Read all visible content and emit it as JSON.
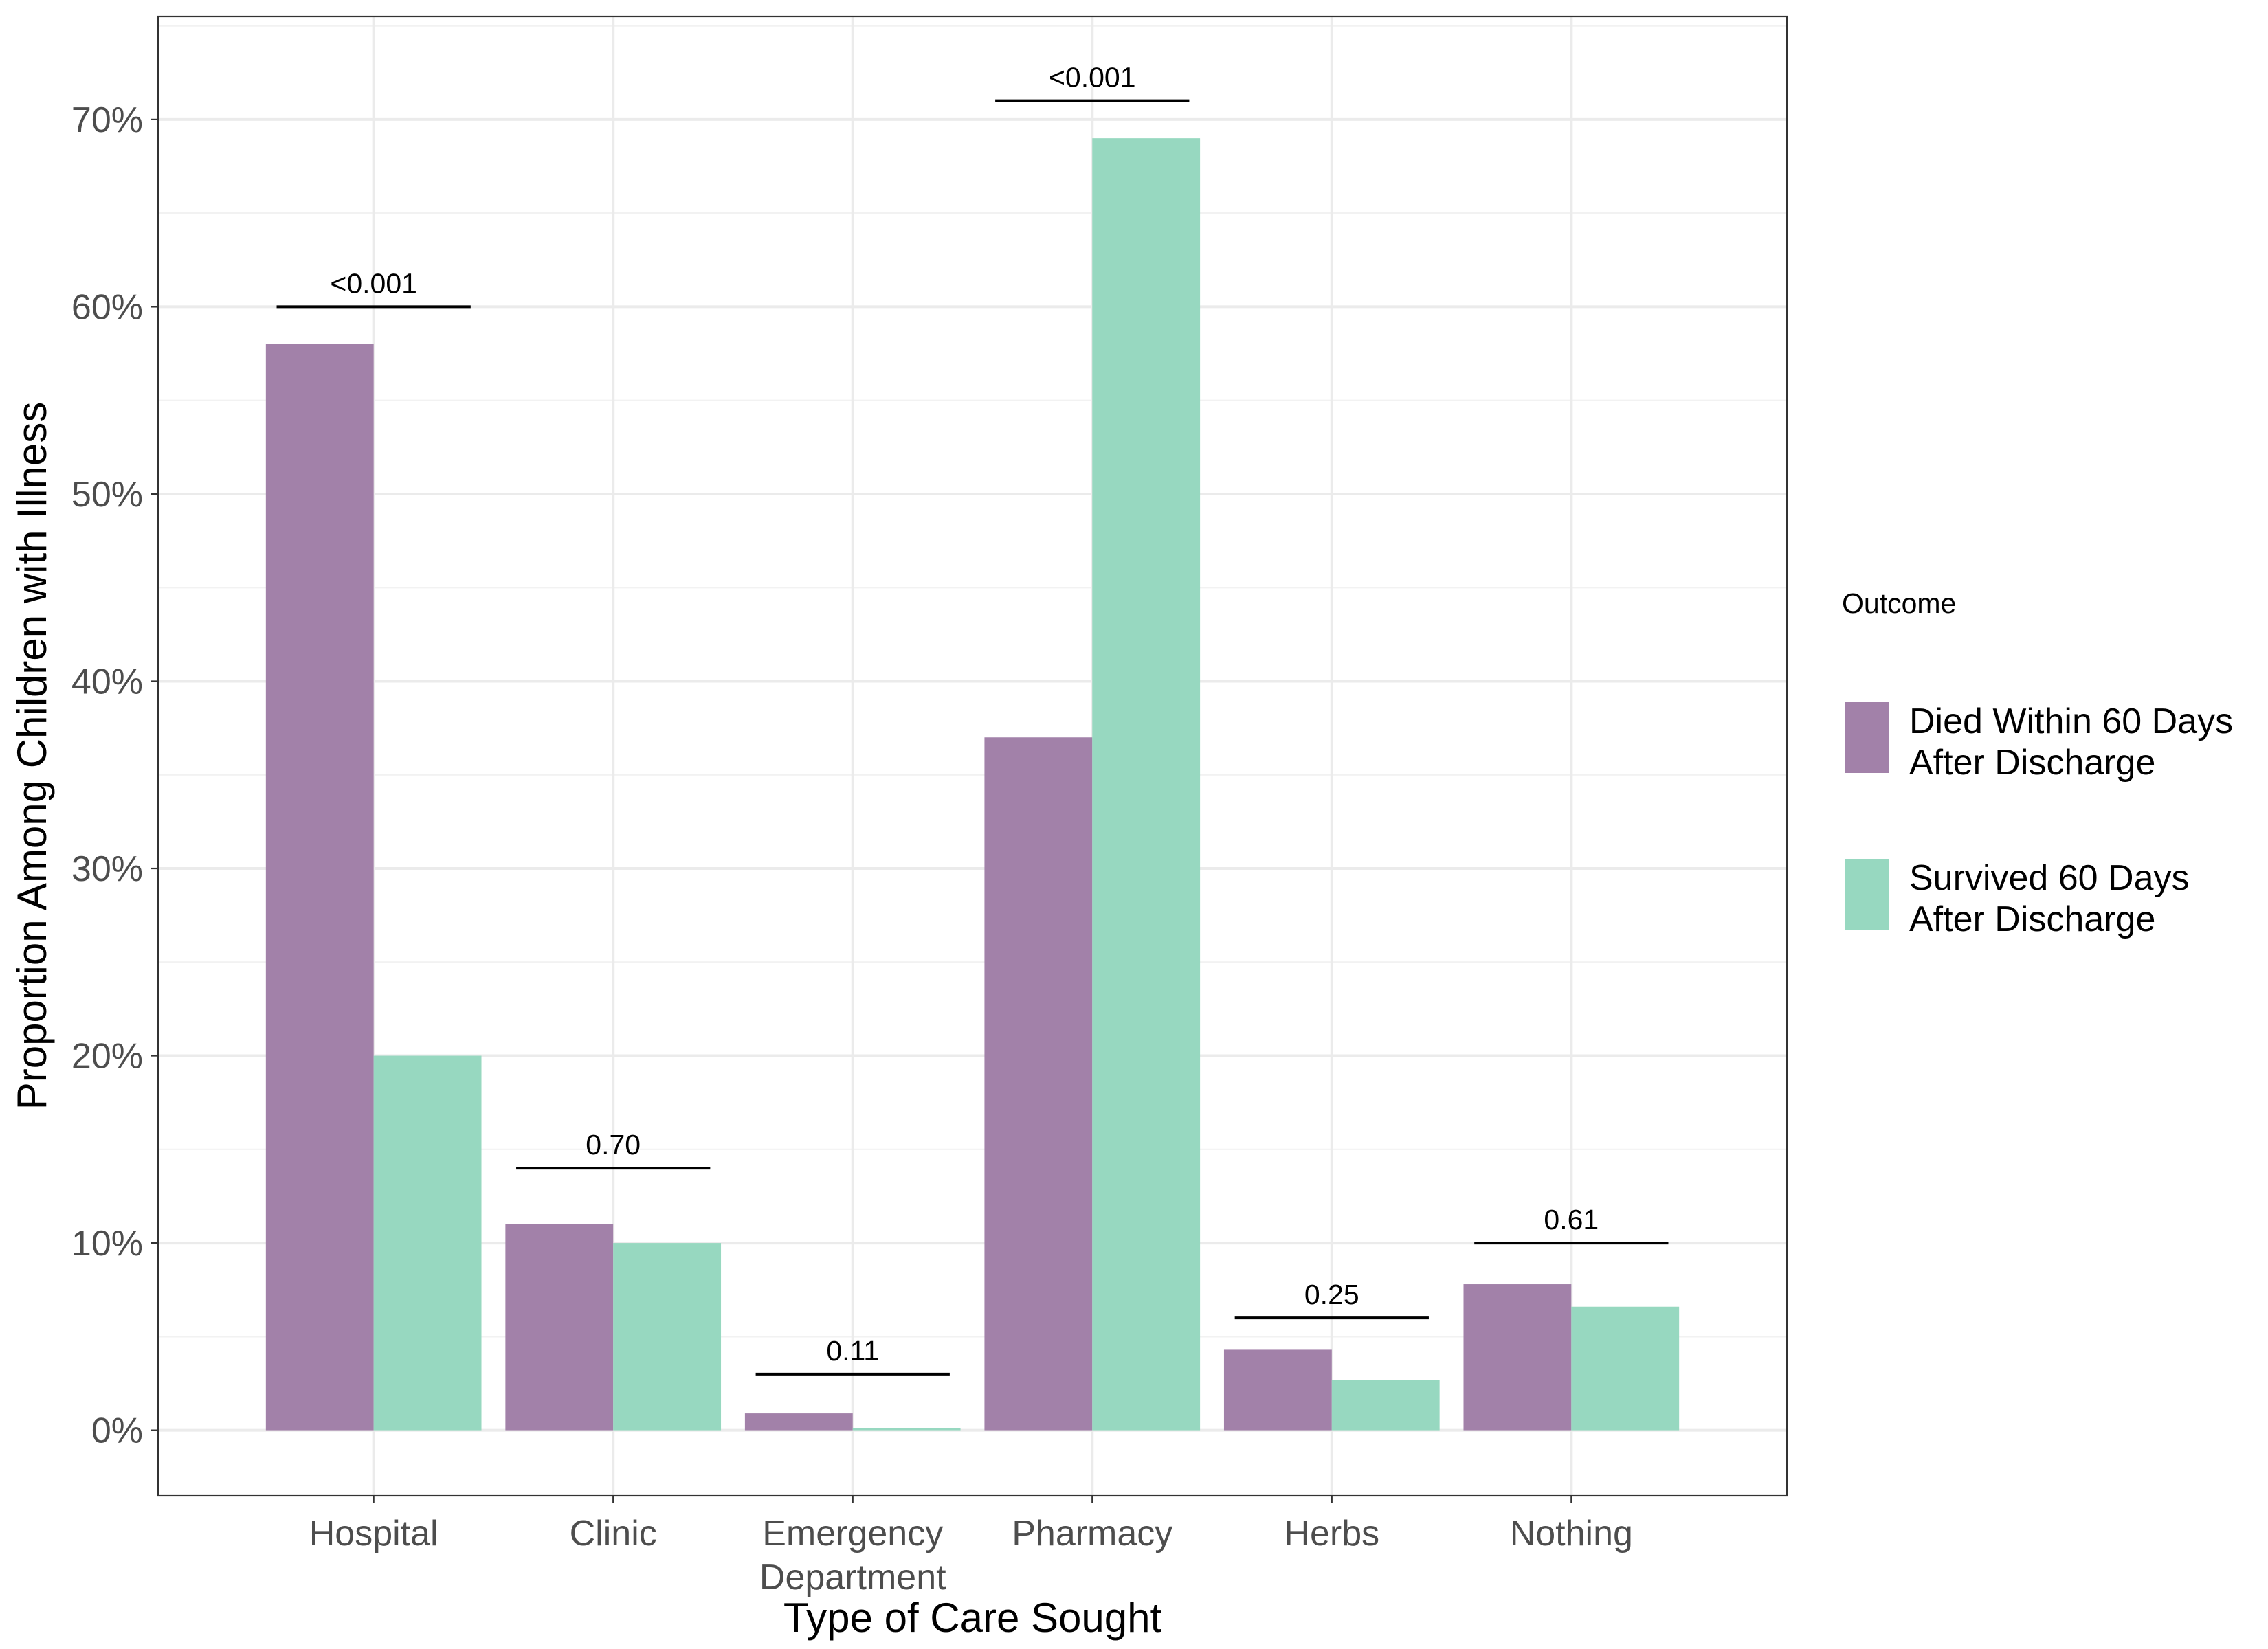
{
  "chart_data": {
    "type": "bar",
    "title": "",
    "xlabel": "Type of Care Sought",
    "ylabel": "Proportion Among Children with Illness",
    "ylim": [
      -0.035,
      0.755
    ],
    "y_ticks": [
      0,
      0.1,
      0.2,
      0.3,
      0.4,
      0.5,
      0.6,
      0.7
    ],
    "y_tick_labels": [
      "0%",
      "10%",
      "20%",
      "30%",
      "40%",
      "50%",
      "60%",
      "70%"
    ],
    "grid": true,
    "categories": [
      [
        "Hospital"
      ],
      [
        "Clinic"
      ],
      [
        "Emergency",
        "Department"
      ],
      [
        "Pharmacy"
      ],
      [
        "Herbs"
      ],
      [
        "Nothing"
      ]
    ],
    "series": [
      {
        "name": [
          "Died Within 60 Days",
          "After Discharge"
        ],
        "color": "#a281a9",
        "values": [
          0.58,
          0.11,
          0.009,
          0.37,
          0.043,
          0.078
        ]
      },
      {
        "name": [
          "Survived 60 Days",
          "After Discharge"
        ],
        "color": "#97d8c0",
        "values": [
          0.2,
          0.1,
          0.001,
          0.69,
          0.027,
          0.066
        ]
      }
    ],
    "annotations": [
      {
        "category": 0,
        "text": "<0.001",
        "y": 0.6
      },
      {
        "category": 1,
        "text": "0.70",
        "y": 0.14
      },
      {
        "category": 2,
        "text": "0.11",
        "y": 0.03
      },
      {
        "category": 3,
        "text": "<0.001",
        "y": 0.71
      },
      {
        "category": 4,
        "text": "0.25",
        "y": 0.06
      },
      {
        "category": 5,
        "text": "0.61",
        "y": 0.1
      }
    ],
    "legend": {
      "title": "Outcome",
      "position": "right"
    }
  }
}
